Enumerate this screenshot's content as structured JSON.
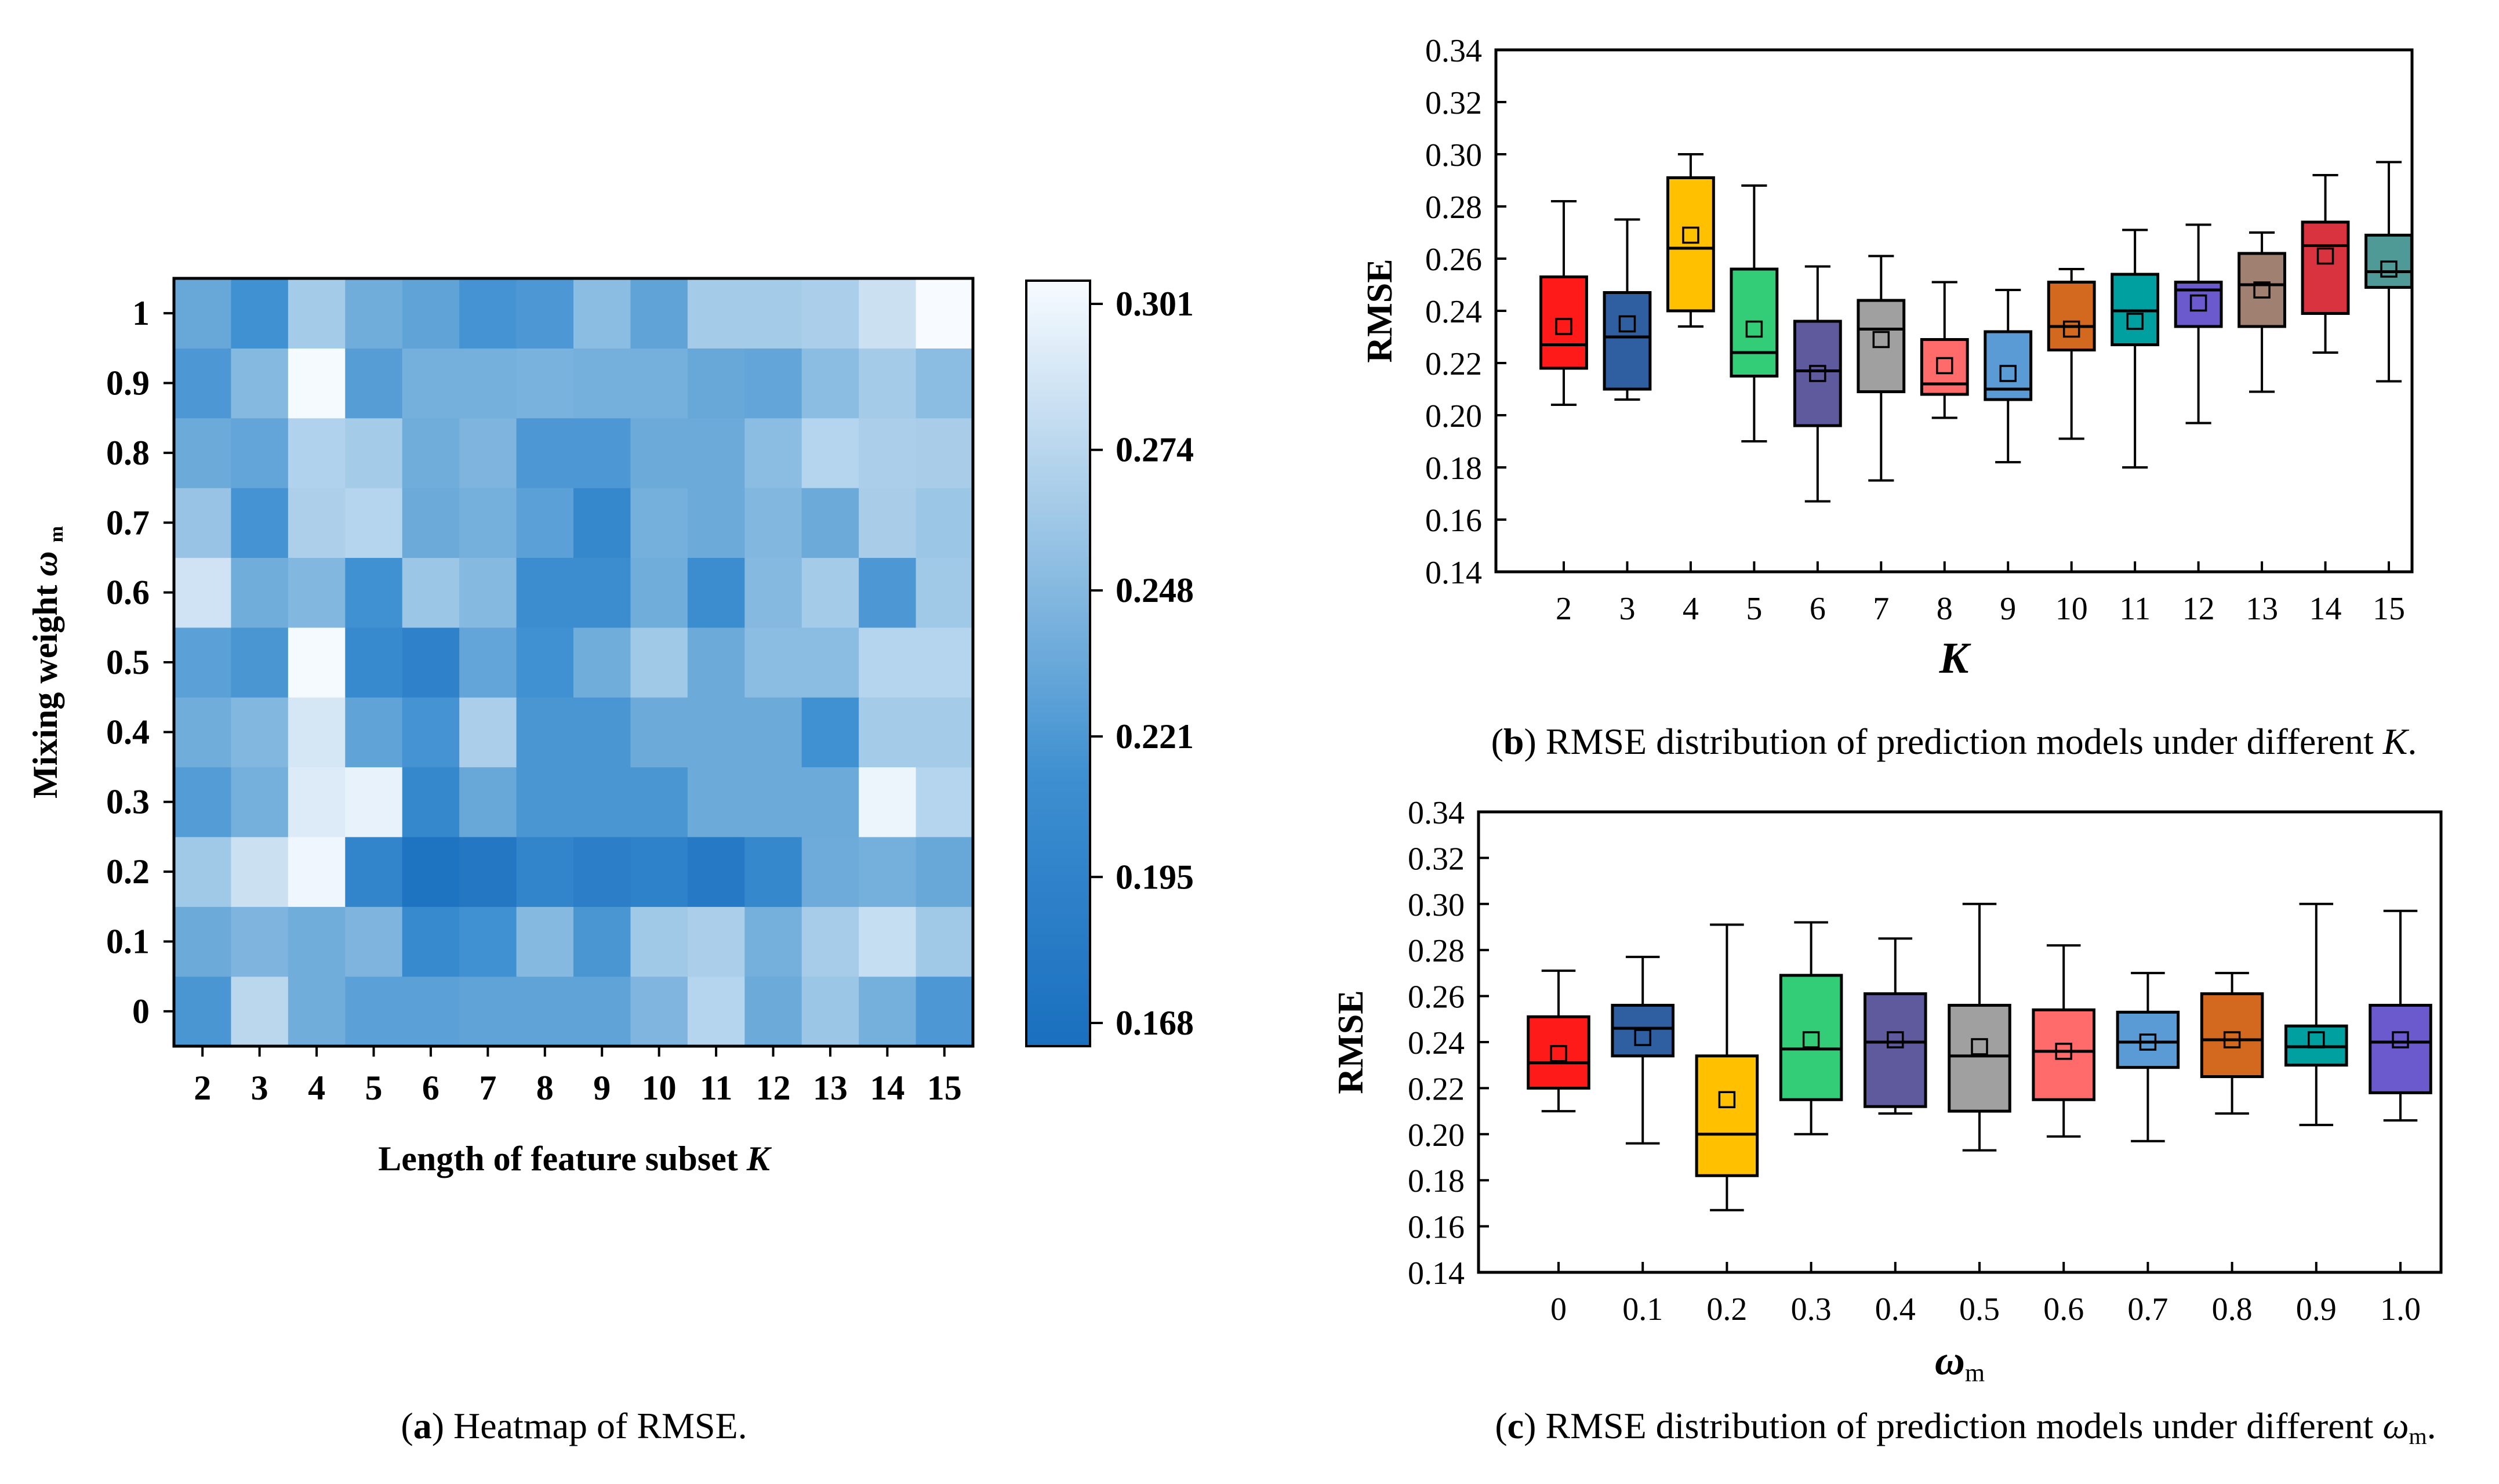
{
  "chart_data": [
    {
      "type": "heatmap",
      "panel": "a",
      "caption_letter": "a",
      "caption_text": "Heatmap of RMSE.",
      "xlabel": "Length of feature subset",
      "xlabel_var": "K",
      "ylabel": "Mixing weight",
      "ylabel_var": "ω",
      "ylabel_sub": "m",
      "x_categories": [
        "2",
        "3",
        "4",
        "5",
        "6",
        "7",
        "8",
        "9",
        "10",
        "11",
        "12",
        "13",
        "14",
        "15"
      ],
      "y_categories": [
        "0",
        "0.1",
        "0.2",
        "0.3",
        "0.4",
        "0.5",
        "0.6",
        "0.7",
        "0.8",
        "0.9",
        "1"
      ],
      "colorbar": {
        "min": 0.168,
        "max": 0.301,
        "ticks": [
          "0.168",
          "0.195",
          "0.221",
          "0.248",
          "0.274",
          "0.301"
        ],
        "colors": [
          "#1a6fbf",
          "#f7fbff"
        ]
      },
      "z": [
        [
          0.22,
          0.272,
          0.238,
          0.228,
          0.228,
          0.23,
          0.23,
          0.23,
          0.245,
          0.27,
          0.236,
          0.258,
          0.24,
          0.222
        ],
        [
          0.236,
          0.244,
          0.238,
          0.244,
          0.208,
          0.216,
          0.248,
          0.22,
          0.26,
          0.265,
          0.24,
          0.263,
          0.278,
          0.26
        ],
        [
          0.26,
          0.28,
          0.297,
          0.2,
          0.175,
          0.18,
          0.2,
          0.19,
          0.195,
          0.184,
          0.205,
          0.237,
          0.24,
          0.234
        ],
        [
          0.225,
          0.24,
          0.288,
          0.294,
          0.205,
          0.234,
          0.22,
          0.22,
          0.22,
          0.236,
          0.236,
          0.236,
          0.296,
          0.27
        ],
        [
          0.238,
          0.246,
          0.285,
          0.23,
          0.218,
          0.265,
          0.22,
          0.22,
          0.236,
          0.236,
          0.236,
          0.216,
          0.262,
          0.262
        ],
        [
          0.228,
          0.22,
          0.3,
          0.208,
          0.196,
          0.232,
          0.216,
          0.238,
          0.26,
          0.236,
          0.25,
          0.25,
          0.27,
          0.27
        ],
        [
          0.282,
          0.238,
          0.246,
          0.216,
          0.258,
          0.248,
          0.212,
          0.212,
          0.238,
          0.212,
          0.248,
          0.262,
          0.222,
          0.26
        ],
        [
          0.256,
          0.218,
          0.266,
          0.27,
          0.236,
          0.24,
          0.228,
          0.205,
          0.24,
          0.236,
          0.246,
          0.236,
          0.264,
          0.258
        ],
        [
          0.236,
          0.232,
          0.268,
          0.262,
          0.238,
          0.244,
          0.222,
          0.222,
          0.236,
          0.236,
          0.25,
          0.27,
          0.265,
          0.264
        ],
        [
          0.222,
          0.248,
          0.3,
          0.226,
          0.24,
          0.24,
          0.242,
          0.24,
          0.24,
          0.234,
          0.232,
          0.25,
          0.262,
          0.25
        ],
        [
          0.234,
          0.216,
          0.262,
          0.238,
          0.23,
          0.218,
          0.222,
          0.25,
          0.23,
          0.262,
          0.262,
          0.265,
          0.28,
          0.301
        ]
      ]
    },
    {
      "type": "box",
      "panel": "b",
      "caption_letter": "b",
      "caption_text": "RMSE distribution of prediction models under different",
      "caption_var": "K",
      "caption_end": ".",
      "ylabel": "RMSE",
      "xlabel": "K",
      "ylim": [
        0.14,
        0.34
      ],
      "yticks": [
        "0.14",
        "0.16",
        "0.18",
        "0.20",
        "0.22",
        "0.24",
        "0.26",
        "0.28",
        "0.30",
        "0.32",
        "0.34"
      ],
      "categories": [
        "2",
        "3",
        "4",
        "5",
        "6",
        "7",
        "8",
        "9",
        "10",
        "11",
        "12",
        "13",
        "14",
        "15"
      ],
      "colors": [
        "#ff1a1a",
        "#2f5fa0",
        "#ffc000",
        "#33cc77",
        "#5f5a9e",
        "#a0a0a0",
        "#ff6b6b",
        "#5b9bd5",
        "#d2691e",
        "#00a0a0",
        "#6a5acd",
        "#a08070",
        "#d9333f",
        "#4f9a96"
      ],
      "boxes": [
        {
          "wlo": 0.204,
          "q1": 0.218,
          "med": 0.227,
          "q3": 0.253,
          "whi": 0.282,
          "mean": 0.234
        },
        {
          "wlo": 0.206,
          "q1": 0.21,
          "med": 0.23,
          "q3": 0.247,
          "whi": 0.275,
          "mean": 0.235
        },
        {
          "wlo": 0.234,
          "q1": 0.24,
          "med": 0.264,
          "q3": 0.291,
          "whi": 0.3,
          "mean": 0.269
        },
        {
          "wlo": 0.19,
          "q1": 0.215,
          "med": 0.224,
          "q3": 0.256,
          "whi": 0.288,
          "mean": 0.233
        },
        {
          "wlo": 0.167,
          "q1": 0.196,
          "med": 0.217,
          "q3": 0.236,
          "whi": 0.257,
          "mean": 0.216
        },
        {
          "wlo": 0.175,
          "q1": 0.209,
          "med": 0.233,
          "q3": 0.244,
          "whi": 0.261,
          "mean": 0.229
        },
        {
          "wlo": 0.199,
          "q1": 0.208,
          "med": 0.212,
          "q3": 0.229,
          "whi": 0.251,
          "mean": 0.219
        },
        {
          "wlo": 0.182,
          "q1": 0.206,
          "med": 0.21,
          "q3": 0.232,
          "whi": 0.248,
          "mean": 0.216
        },
        {
          "wlo": 0.191,
          "q1": 0.225,
          "med": 0.234,
          "q3": 0.251,
          "whi": 0.256,
          "mean": 0.233
        },
        {
          "wlo": 0.18,
          "q1": 0.227,
          "med": 0.24,
          "q3": 0.254,
          "whi": 0.271,
          "mean": 0.236
        },
        {
          "wlo": 0.197,
          "q1": 0.234,
          "med": 0.248,
          "q3": 0.251,
          "whi": 0.273,
          "mean": 0.243
        },
        {
          "wlo": 0.209,
          "q1": 0.234,
          "med": 0.25,
          "q3": 0.262,
          "whi": 0.27,
          "mean": 0.248
        },
        {
          "wlo": 0.224,
          "q1": 0.239,
          "med": 0.265,
          "q3": 0.274,
          "whi": 0.292,
          "mean": 0.261
        },
        {
          "wlo": 0.213,
          "q1": 0.249,
          "med": 0.255,
          "q3": 0.269,
          "whi": 0.297,
          "mean": 0.256
        }
      ]
    },
    {
      "type": "box",
      "panel": "c",
      "caption_letter": "c",
      "caption_text": "RMSE distribution of prediction models under different",
      "caption_var": "ω",
      "caption_sub": "m",
      "caption_end": ".",
      "ylabel": "RMSE",
      "xlabel": "ω",
      "xlabel_sub": "m",
      "ylim": [
        0.14,
        0.34
      ],
      "yticks": [
        "0.14",
        "0.16",
        "0.18",
        "0.20",
        "0.22",
        "0.24",
        "0.26",
        "0.28",
        "0.30",
        "0.32",
        "0.34"
      ],
      "categories": [
        "0",
        "0.1",
        "0.2",
        "0.3",
        "0.4",
        "0.5",
        "0.6",
        "0.7",
        "0.8",
        "0.9",
        "1.0"
      ],
      "colors": [
        "#ff1a1a",
        "#2f5fa0",
        "#ffc000",
        "#33cc77",
        "#5f5a9e",
        "#a0a0a0",
        "#ff6b6b",
        "#5b9bd5",
        "#d2691e",
        "#00a0a0",
        "#6a5acd"
      ],
      "boxes": [
        {
          "wlo": 0.21,
          "q1": 0.22,
          "med": 0.231,
          "q3": 0.251,
          "whi": 0.271,
          "mean": 0.235
        },
        {
          "wlo": 0.196,
          "q1": 0.234,
          "med": 0.246,
          "q3": 0.256,
          "whi": 0.277,
          "mean": 0.242
        },
        {
          "wlo": 0.167,
          "q1": 0.182,
          "med": 0.2,
          "q3": 0.234,
          "whi": 0.291,
          "mean": 0.215
        },
        {
          "wlo": 0.2,
          "q1": 0.215,
          "med": 0.237,
          "q3": 0.269,
          "whi": 0.292,
          "mean": 0.241
        },
        {
          "wlo": 0.209,
          "q1": 0.212,
          "med": 0.24,
          "q3": 0.261,
          "whi": 0.285,
          "mean": 0.241
        },
        {
          "wlo": 0.193,
          "q1": 0.21,
          "med": 0.234,
          "q3": 0.256,
          "whi": 0.3,
          "mean": 0.238
        },
        {
          "wlo": 0.199,
          "q1": 0.215,
          "med": 0.236,
          "q3": 0.254,
          "whi": 0.282,
          "mean": 0.236
        },
        {
          "wlo": 0.197,
          "q1": 0.229,
          "med": 0.24,
          "q3": 0.253,
          "whi": 0.27,
          "mean": 0.24
        },
        {
          "wlo": 0.209,
          "q1": 0.225,
          "med": 0.241,
          "q3": 0.261,
          "whi": 0.27,
          "mean": 0.241
        },
        {
          "wlo": 0.204,
          "q1": 0.23,
          "med": 0.238,
          "q3": 0.247,
          "whi": 0.3,
          "mean": 0.241
        },
        {
          "wlo": 0.206,
          "q1": 0.218,
          "med": 0.24,
          "q3": 0.256,
          "whi": 0.297,
          "mean": 0.241
        }
      ]
    }
  ]
}
